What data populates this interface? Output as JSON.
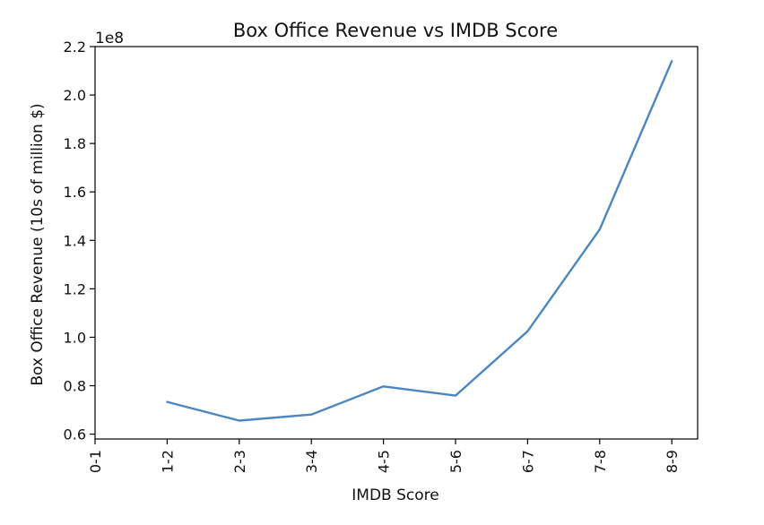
{
  "chart_data": {
    "type": "line",
    "title": "Box Office Revenue  vs IMDB Score",
    "xlabel": "IMDB Score",
    "ylabel": "Box Office Revenue (10s of million $)",
    "y_multiplier_label": "1e8",
    "categories": [
      "0-1",
      "1-2",
      "2-3",
      "3-4",
      "4-5",
      "5-6",
      "6-7",
      "7-8",
      "8-9"
    ],
    "series": [
      {
        "values": [
          null,
          0.733,
          0.656,
          0.681,
          0.797,
          0.759,
          1.025,
          1.445,
          2.14
        ],
        "color": "#4b86c0"
      }
    ],
    "ylim": [
      0.58,
      2.2
    ],
    "yticks": [
      0.6,
      0.8,
      1.0,
      1.2,
      1.4,
      1.6,
      1.8,
      2.0,
      2.2
    ],
    "ytick_labels": [
      "0.6",
      "0.8",
      "1.0",
      "1.2",
      "1.4",
      "1.6",
      "1.8",
      "2.0",
      "2.2"
    ],
    "grid": false,
    "legend": "none"
  }
}
